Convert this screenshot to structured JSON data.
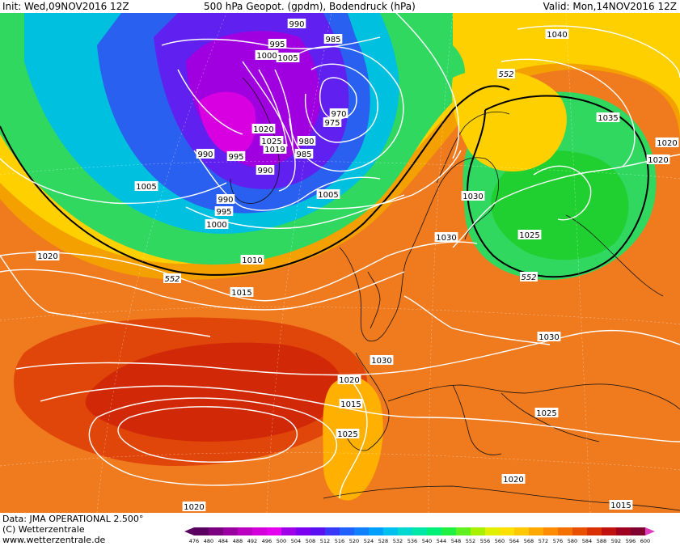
{
  "header": {
    "init_label": "Init: Wed,09NOV2016 12Z",
    "title": "500 hPa Geopot. (gpdm), Bodendruck (hPa)",
    "valid_label": "Valid: Mon,14NOV2016 12Z"
  },
  "footer": {
    "data_line": "Data: JMA OPERATIONAL 2.500°",
    "copyright_line": "(C) Wetterzentrale",
    "url_line": "www.wetterzentrale.de"
  },
  "colorbar": {
    "ticks": [
      "476",
      "480",
      "484",
      "488",
      "492",
      "496",
      "500",
      "504",
      "508",
      "512",
      "516",
      "520",
      "524",
      "528",
      "532",
      "536",
      "540",
      "544",
      "548",
      "552",
      "556",
      "560",
      "564",
      "568",
      "572",
      "576",
      "580",
      "584",
      "588",
      "592",
      "596",
      "600"
    ],
    "colors": [
      "#5a0060",
      "#7a007f",
      "#9a00a0",
      "#bc00c2",
      "#d400dc",
      "#e600f0",
      "#a000e8",
      "#7c00f0",
      "#5a10f0",
      "#3a38f8",
      "#2060ff",
      "#1080ff",
      "#00a0ff",
      "#00c0f0",
      "#00d8d0",
      "#00e8a8",
      "#00f078",
      "#20f040",
      "#60f020",
      "#a8f000",
      "#e0f000",
      "#ffe000",
      "#ffc800",
      "#ffa800",
      "#ff8c00",
      "#f47000",
      "#e85000",
      "#d83000",
      "#c01010",
      "#a00020",
      "#800030",
      "#e03cbe"
    ]
  },
  "pressure_labels": [
    "990",
    "985",
    "995",
    "1005",
    "1000",
    "1020",
    "1025",
    "1019",
    "980",
    "970",
    "975",
    "990",
    "995",
    "985",
    "990",
    "990",
    "995",
    "1000",
    "1005",
    "1005",
    "1010",
    "1015",
    "1020",
    "1040",
    "1035",
    "1020",
    "1020",
    "1030",
    "1030",
    "1025",
    "1030",
    "1030",
    "1025",
    "1020",
    "1015",
    "1025",
    "1020",
    "1015",
    "1020"
  ],
  "height_labels": [
    "552",
    "552",
    "552"
  ]
}
